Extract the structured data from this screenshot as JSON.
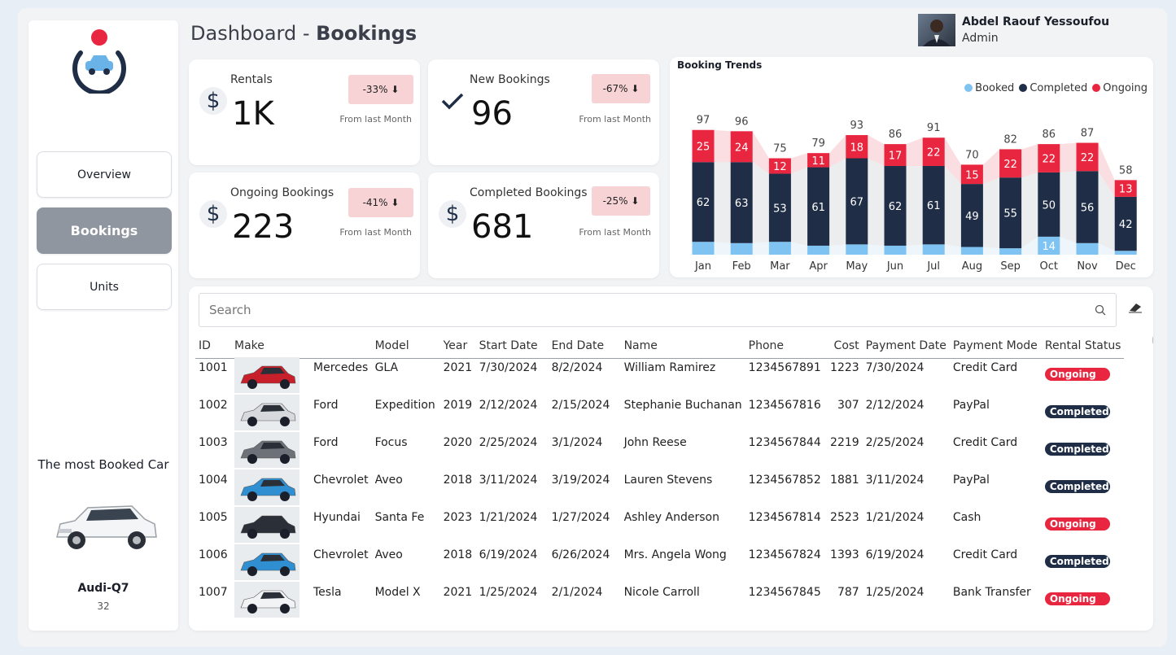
{
  "header": {
    "title_prefix": "Dashboard - ",
    "title_bold": "Bookings"
  },
  "user": {
    "name": "Abdel Raouf Yessoufou",
    "role": "Admin"
  },
  "nav": {
    "overview": "Overview",
    "bookings": "Bookings",
    "units": "Units"
  },
  "most_booked": {
    "title": "The most Booked Car",
    "name": "Audi-Q7",
    "count": "32"
  },
  "kpis": {
    "rentals": {
      "label": "Rentals",
      "value": "1K",
      "change": "-33% ⬇",
      "sub": "From last Month"
    },
    "new_bookings": {
      "label": "New Bookings",
      "value": "96",
      "change": "-67% ⬇",
      "sub": "From last Month"
    },
    "ongoing": {
      "label": "Ongoing Bookings",
      "value": "223",
      "change": "-41% ⬇",
      "sub": "From last Month"
    },
    "completed": {
      "label": "Completed Bookings",
      "value": "681",
      "change": "-25% ⬇",
      "sub": "From last Month"
    }
  },
  "chart_data": {
    "type": "bar",
    "title": "Booking Trends",
    "categories": [
      "Jan",
      "Feb",
      "Mar",
      "Apr",
      "May",
      "Jun",
      "Jul",
      "Aug",
      "Sep",
      "Oct",
      "Nov",
      "Dec"
    ],
    "series": [
      {
        "name": "Booked",
        "color": "#7ec3f1",
        "values": [
          10,
          9,
          10,
          7,
          8,
          7,
          8,
          6,
          5,
          14,
          9,
          3
        ]
      },
      {
        "name": "Completed",
        "color": "#1f2e46",
        "values": [
          62,
          63,
          53,
          61,
          67,
          62,
          61,
          49,
          55,
          50,
          56,
          42
        ]
      },
      {
        "name": "Ongoing",
        "color": "#e8263f",
        "values": [
          25,
          24,
          12,
          11,
          18,
          17,
          22,
          15,
          22,
          22,
          22,
          13
        ]
      }
    ],
    "totals": [
      97,
      96,
      75,
      79,
      93,
      86,
      91,
      70,
      82,
      86,
      87,
      58
    ],
    "visible_booked_label": {
      "index": 9,
      "value": "14"
    },
    "legend": "top-right",
    "stacked": true
  },
  "search": {
    "placeholder": "Search"
  },
  "table": {
    "columns": [
      "ID",
      "Make",
      "",
      "Model",
      "Year",
      "Start Date",
      "End Date",
      "Name",
      "Phone",
      "Cost",
      "Payment Date",
      "Payment Mode",
      "Rental Status"
    ],
    "rows": [
      {
        "id": "1001",
        "make": "Mercedes",
        "model": "GLA",
        "year": "2021",
        "start": "7/30/2024",
        "end": "8/2/2024",
        "name": "William Ramirez",
        "phone": "1234567891",
        "cost": "1223",
        "pay_date": "7/30/2024",
        "pay_mode": "Credit Card",
        "status": "Ongoing",
        "car_color": "#c8202b"
      },
      {
        "id": "1002",
        "make": "Ford",
        "model": "Expedition",
        "year": "2019",
        "start": "2/12/2024",
        "end": "2/15/2024",
        "name": "Stephanie Buchanan",
        "phone": "1234567816",
        "cost": "307",
        "pay_date": "2/12/2024",
        "pay_mode": "PayPal",
        "status": "Completed",
        "car_color": "#d7d9dc"
      },
      {
        "id": "1003",
        "make": "Ford",
        "model": "Focus",
        "year": "2020",
        "start": "2/25/2024",
        "end": "3/1/2024",
        "name": "John Reese",
        "phone": "1234567844",
        "cost": "2219",
        "pay_date": "2/25/2024",
        "pay_mode": "Credit Card",
        "status": "Completed",
        "car_color": "#6d7278"
      },
      {
        "id": "1004",
        "make": "Chevrolet",
        "model": "Aveo",
        "year": "2018",
        "start": "3/11/2024",
        "end": "3/19/2024",
        "name": "Lauren Stevens",
        "phone": "1234567852",
        "cost": "1881",
        "pay_date": "3/11/2024",
        "pay_mode": "PayPal",
        "status": "Completed",
        "car_color": "#2f8fd0"
      },
      {
        "id": "1005",
        "make": "Hyundai",
        "model": "Santa Fe",
        "year": "2023",
        "start": "1/21/2024",
        "end": "1/27/2024",
        "name": "Ashley Anderson",
        "phone": "1234567814",
        "cost": "2523",
        "pay_date": "1/21/2024",
        "pay_mode": "Cash",
        "status": "Ongoing",
        "car_color": "#2a2f38"
      },
      {
        "id": "1006",
        "make": "Chevrolet",
        "model": "Aveo",
        "year": "2018",
        "start": "6/19/2024",
        "end": "6/26/2024",
        "name": "Mrs. Angela Wong",
        "phone": "1234567824",
        "cost": "1393",
        "pay_date": "6/19/2024",
        "pay_mode": "Credit Card",
        "status": "Completed",
        "car_color": "#2f8fd0"
      },
      {
        "id": "1007",
        "make": "Tesla",
        "model": "Model X",
        "year": "2021",
        "start": "1/25/2024",
        "end": "2/1/2024",
        "name": "Nicole Carroll",
        "phone": "1234567845",
        "cost": "787",
        "pay_date": "1/25/2024",
        "pay_mode": "Bank Transfer",
        "status": "Ongoing",
        "car_color": "#f2f3f5"
      }
    ]
  }
}
